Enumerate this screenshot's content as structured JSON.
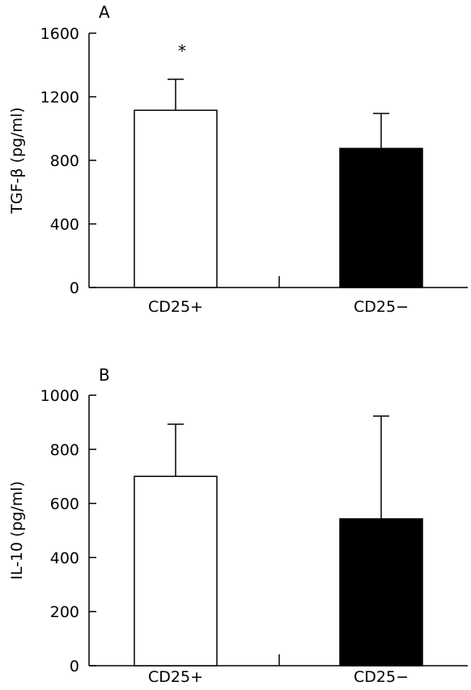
{
  "chart_data": [
    {
      "type": "bar",
      "panel_label": "A",
      "ylabel": "TGF-β (pg/ml)",
      "ylim": [
        0,
        1600
      ],
      "yticks": [
        0,
        400,
        800,
        1200,
        1600
      ],
      "categories": [
        "CD25+",
        "CD25−"
      ],
      "values": [
        1115,
        875
      ],
      "errors": [
        195,
        220
      ],
      "bar_colors": [
        "#ffffff",
        "#000000"
      ],
      "annotations": [
        {
          "category": "CD25+",
          "text": "*"
        }
      ],
      "grid": false
    },
    {
      "type": "bar",
      "panel_label": "B",
      "ylabel": "IL-10 (pg/ml)",
      "ylim": [
        0,
        1000
      ],
      "yticks": [
        0,
        200,
        400,
        600,
        800,
        1000
      ],
      "categories": [
        "CD25+",
        "CD25−"
      ],
      "values": [
        700,
        543
      ],
      "errors": [
        193,
        380
      ],
      "bar_colors": [
        "#ffffff",
        "#000000"
      ],
      "annotations": [],
      "grid": false
    }
  ]
}
